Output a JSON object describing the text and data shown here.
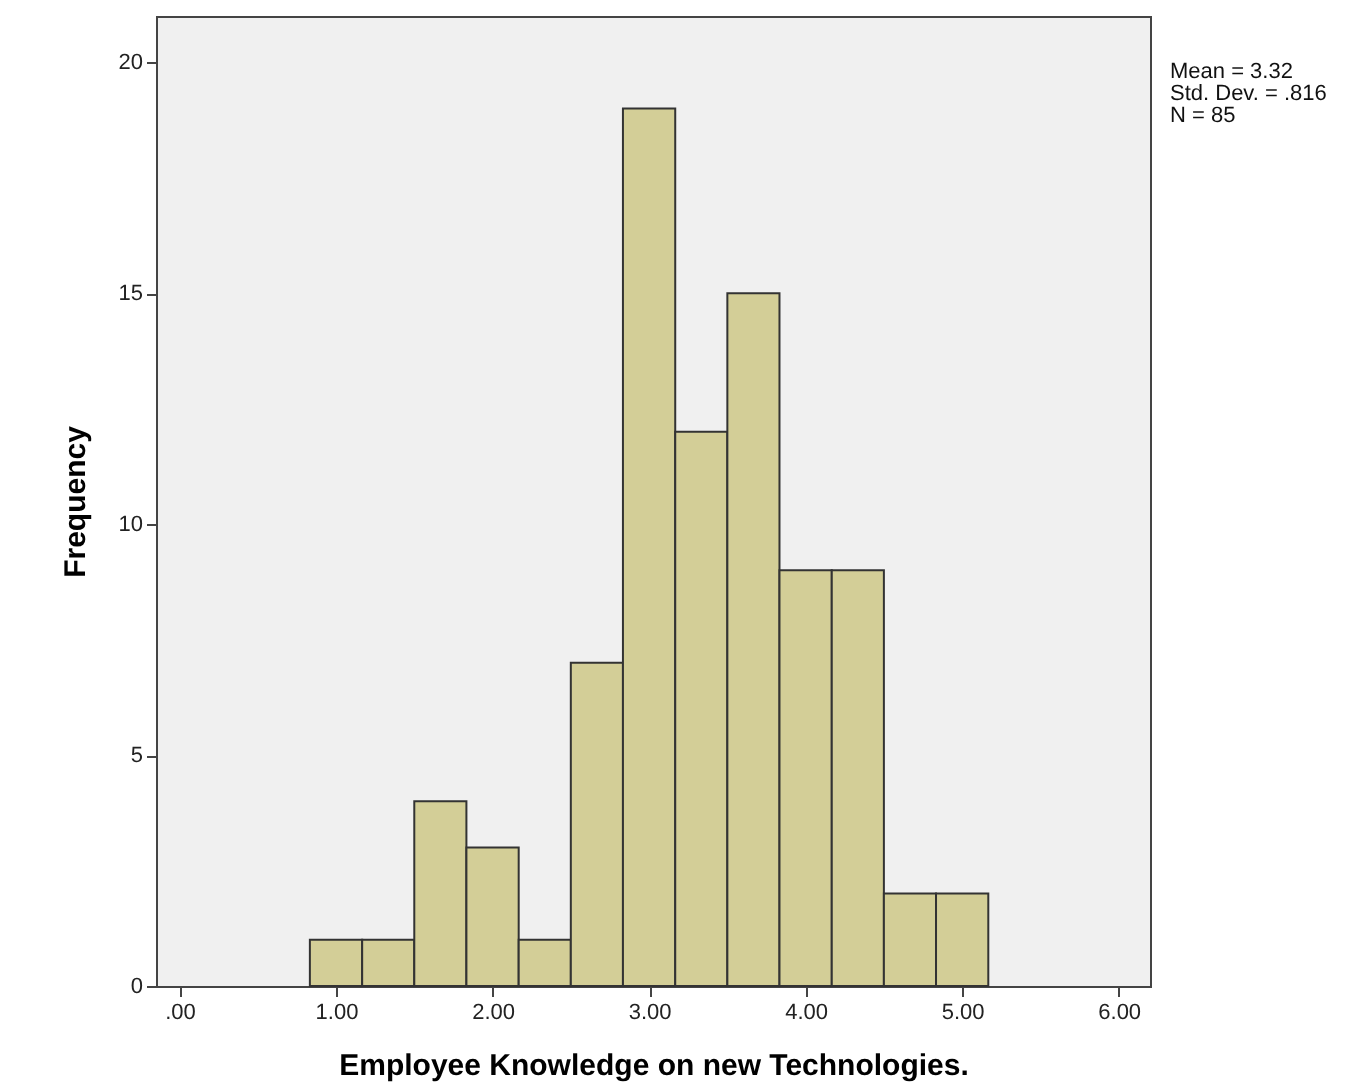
{
  "chart_data": {
    "type": "histogram",
    "xlabel": "Employee Knowledge on new Technologies.",
    "ylabel": "Frequency",
    "bins": [
      0.833,
      1.167,
      1.5,
      1.833,
      2.167,
      2.5,
      2.833,
      3.167,
      3.5,
      3.833,
      4.167,
      4.5,
      4.833,
      5.167
    ],
    "values": [
      1,
      1,
      4,
      3,
      1,
      7,
      19,
      12,
      15,
      9,
      9,
      2,
      2
    ],
    "color": "#d3ce97",
    "xlim": [
      -0.15,
      6.2
    ],
    "xticks": [
      {
        "value": 0,
        "label": ".00"
      },
      {
        "value": 1,
        "label": "1.00"
      },
      {
        "value": 2,
        "label": "2.00"
      },
      {
        "value": 3,
        "label": "3.00"
      },
      {
        "value": 4,
        "label": "4.00"
      },
      {
        "value": 5,
        "label": "5.00"
      },
      {
        "value": 6,
        "label": "6.00"
      }
    ],
    "ylim": [
      0,
      21
    ],
    "yticks": [
      0,
      5,
      10,
      15,
      20
    ],
    "annotations": [
      "Mean = 3.32",
      "Std. Dev. = .816",
      "N = 85"
    ]
  }
}
